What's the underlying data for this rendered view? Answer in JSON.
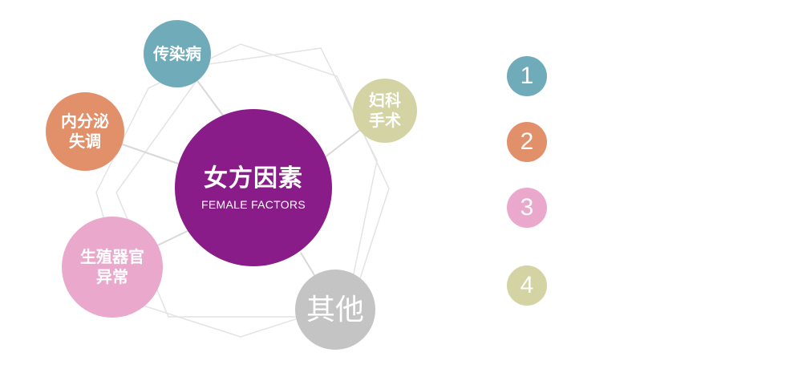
{
  "center": {
    "title": "女方因素",
    "subtitle": "FEMALE FACTORS",
    "color": "#8a1c8a"
  },
  "nodes": [
    {
      "id": "infectious-disease",
      "lines": [
        "传染病"
      ],
      "color": "#6fabb9"
    },
    {
      "id": "gynecologic-surgery",
      "lines": [
        "妇科",
        "手术"
      ],
      "color": "#d3d3a4"
    },
    {
      "id": "endocrine-disorder",
      "lines": [
        "内分泌",
        "失调"
      ],
      "color": "#e1906a"
    },
    {
      "id": "reproductive-abnormality",
      "lines": [
        "生殖器官",
        "异常"
      ],
      "color": "#e9a8cc"
    },
    {
      "id": "other",
      "lines": [
        "其他"
      ],
      "color": "#c4c4c4"
    }
  ],
  "legend": [
    {
      "number": "1",
      "color": "#6fabb9"
    },
    {
      "number": "2",
      "color": "#e1906a"
    },
    {
      "number": "3",
      "color": "#e9a8cc"
    },
    {
      "number": "4",
      "color": "#d3d3a4"
    }
  ]
}
